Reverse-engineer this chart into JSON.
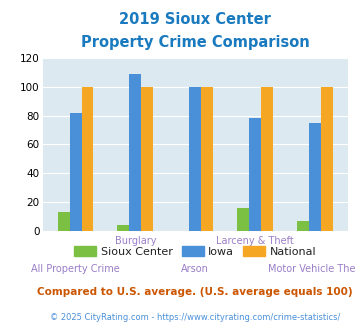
{
  "title_line1": "2019 Sioux Center",
  "title_line2": "Property Crime Comparison",
  "categories": [
    "All Property Crime",
    "Burglary",
    "Arson",
    "Larceny & Theft",
    "Motor Vehicle Theft"
  ],
  "series": {
    "Sioux Center": [
      13,
      4,
      0,
      16,
      7
    ],
    "Iowa": [
      82,
      109,
      100,
      78,
      75
    ],
    "National": [
      100,
      100,
      100,
      100,
      100
    ]
  },
  "colors": {
    "Sioux Center": "#7bc043",
    "Iowa": "#4a90d9",
    "National": "#f5a623"
  },
  "ylim": [
    0,
    120
  ],
  "yticks": [
    0,
    20,
    40,
    60,
    80,
    100,
    120
  ],
  "background_color": "#dce9f0",
  "title_color": "#1a7abf",
  "xlabel_color": "#9b7ec8",
  "note_text": "Compared to U.S. average. (U.S. average equals 100)",
  "note_color": "#cc5500",
  "footer_text": "© 2025 CityRating.com - https://www.cityrating.com/crime-statistics/",
  "footer_color": "#4a90d9",
  "legend_names": [
    "Sioux Center",
    "Iowa",
    "National"
  ]
}
